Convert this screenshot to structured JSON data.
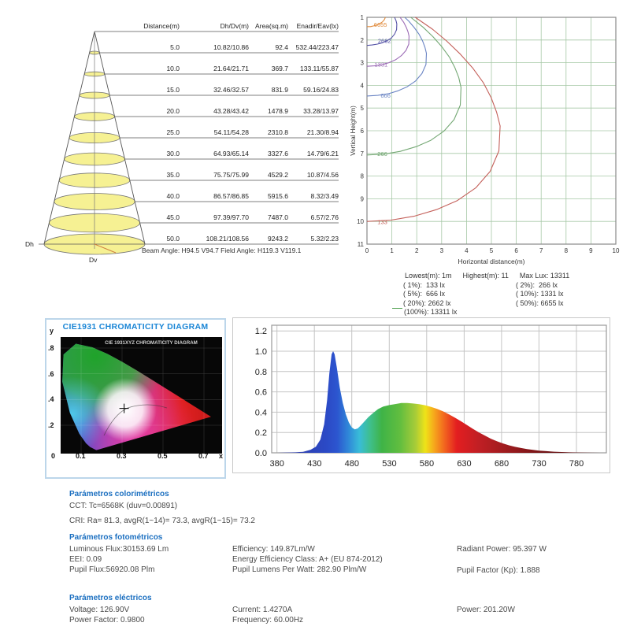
{
  "cone": {
    "dh_label": "Dh",
    "dv_label": "Dv",
    "beam_angle_text": "Beam Angle: H94.5 V94.7  Field Angle: H119.3 V119.1"
  },
  "colors": {
    "accent_blue": "#1B86D6",
    "param_blue": "#1B6FC0",
    "grid_green": "#A6C8A6",
    "cone_fill": "#F6F193",
    "legend_dash_green": "#4FA04F"
  },
  "chart_data": [
    {
      "type": "table",
      "headers": [
        "Distance(m)",
        "Dh/Dv(m)",
        "Area(sq.m)",
        "Enadir/Eav(lx)"
      ],
      "rows": [
        [
          "5.0",
          "10.82/10.86",
          "92.4",
          "532.44/223.47"
        ],
        [
          "10.0",
          "21.64/21.71",
          "369.7",
          "133.11/55.87"
        ],
        [
          "15.0",
          "32.46/32.57",
          "831.9",
          "59.16/24.83"
        ],
        [
          "20.0",
          "43.28/43.42",
          "1478.9",
          "33.28/13.97"
        ],
        [
          "25.0",
          "54.11/54.28",
          "2310.8",
          "21.30/8.94"
        ],
        [
          "30.0",
          "64.93/65.14",
          "3327.6",
          "14.79/6.21"
        ],
        [
          "35.0",
          "75.75/75.99",
          "4529.2",
          "10.87/4.56"
        ],
        [
          "40.0",
          "86.57/86.85",
          "5915.6",
          "8.32/3.49"
        ],
        [
          "45.0",
          "97.39/97.70",
          "7487.0",
          "6.57/2.76"
        ],
        [
          "50.0",
          "108.21/108.56",
          "9243.2",
          "5.32/2.23"
        ]
      ]
    },
    {
      "type": "line",
      "title": "isolux-contours",
      "xlabel": "Horizontal distance(m)",
      "ylabel": "Vertical Height(m)",
      "xlim": [
        0,
        10
      ],
      "ylim": [
        1,
        11
      ],
      "grid": true,
      "xticks": [
        "0",
        "1",
        "2",
        "3",
        "4",
        "5",
        "6",
        "7",
        "8",
        "9",
        "10"
      ],
      "yticks": [
        "1",
        "2",
        "3",
        "4",
        "5",
        "6",
        "7",
        "8",
        "9",
        "10",
        "11"
      ],
      "curves": [
        {
          "label": "6655",
          "color": "#E08A3C",
          "label_pos": [
            0.28,
            1.33
          ],
          "points": [
            [
              0,
              1.41
            ],
            [
              0.14,
              1.41
            ],
            [
              0.27,
              1.38
            ],
            [
              0.4,
              1.34
            ],
            [
              0.51,
              1.28
            ],
            [
              0.62,
              1.2
            ],
            [
              0.7,
              1.1
            ],
            [
              0.74,
              1.0
            ]
          ]
        },
        {
          "label": "2662",
          "color": "#5553A6",
          "label_pos": [
            0.44,
            2.05
          ],
          "points": [
            [
              0,
              2.24
            ],
            [
              0.21,
              2.22
            ],
            [
              0.42,
              2.18
            ],
            [
              0.62,
              2.12
            ],
            [
              0.81,
              2.03
            ],
            [
              0.98,
              1.91
            ],
            [
              1.11,
              1.74
            ],
            [
              1.19,
              1.54
            ],
            [
              1.2,
              1.29
            ],
            [
              1.17,
              1.16
            ],
            [
              1.11,
              1.0
            ]
          ]
        },
        {
          "label": "1331",
          "color": "#9B6BB5",
          "label_pos": [
            0.3,
            3.08
          ],
          "points": [
            [
              0,
              3.16
            ],
            [
              0.3,
              3.14
            ],
            [
              0.6,
              3.09
            ],
            [
              0.88,
              3.0
            ],
            [
              1.15,
              2.87
            ],
            [
              1.38,
              2.69
            ],
            [
              1.57,
              2.46
            ],
            [
              1.68,
              2.18
            ],
            [
              1.69,
              1.83
            ],
            [
              1.65,
              1.64
            ],
            [
              1.58,
              1.44
            ],
            [
              1.48,
              1.23
            ],
            [
              1.33,
              1.0
            ]
          ]
        },
        {
          "label": "666",
          "color": "#6B85C4",
          "label_pos": [
            0.55,
            4.46
          ],
          "points": [
            [
              0,
              4.47
            ],
            [
              0.43,
              4.44
            ],
            [
              0.85,
              4.37
            ],
            [
              1.25,
              4.24
            ],
            [
              1.62,
              4.06
            ],
            [
              1.95,
              3.81
            ],
            [
              2.21,
              3.48
            ],
            [
              2.37,
              3.08
            ],
            [
              2.39,
              2.59
            ],
            [
              2.33,
              2.32
            ],
            [
              2.23,
              2.03
            ],
            [
              2.09,
              1.74
            ],
            [
              1.9,
              1.45
            ],
            [
              1.68,
              1.17
            ],
            [
              1.52,
              1.0
            ]
          ]
        },
        {
          "label": "266",
          "color": "#74A874",
          "label_pos": [
            0.42,
            7.02
          ],
          "points": [
            [
              0,
              7.07
            ],
            [
              0.68,
              7.03
            ],
            [
              1.34,
              6.91
            ],
            [
              1.98,
              6.7
            ],
            [
              2.57,
              6.42
            ],
            [
              3.09,
              6.02
            ],
            [
              3.5,
              5.51
            ],
            [
              3.75,
              4.87
            ],
            [
              3.78,
              4.09
            ],
            [
              3.69,
              3.66
            ],
            [
              3.53,
              3.21
            ],
            [
              3.31,
              2.75
            ],
            [
              3.01,
              2.3
            ],
            [
              2.65,
              1.85
            ],
            [
              2.26,
              1.44
            ],
            [
              1.76,
              1.0
            ]
          ]
        },
        {
          "label": "133",
          "color": "#C4605A",
          "label_pos": [
            0.42,
            10.02
          ],
          "points": [
            [
              0,
              10.0
            ],
            [
              0.96,
              9.94
            ],
            [
              1.89,
              9.77
            ],
            [
              2.79,
              9.48
            ],
            [
              3.63,
              9.08
            ],
            [
              4.37,
              8.52
            ],
            [
              4.95,
              7.79
            ],
            [
              5.3,
              6.89
            ],
            [
              5.35,
              5.79
            ],
            [
              5.21,
              5.18
            ],
            [
              4.99,
              4.54
            ],
            [
              4.68,
              3.89
            ],
            [
              4.26,
              3.25
            ],
            [
              3.75,
              2.62
            ],
            [
              3.2,
              2.04
            ],
            [
              2.63,
              1.52
            ],
            [
              1.94,
              1.0
            ]
          ]
        }
      ],
      "legend": {
        "lowest": "Lowest(m): 1m",
        "highest": "Highest(m): 11",
        "maxlux": "Max Lux: 13311",
        "left": [
          "( 1%):  133 lx",
          "( 5%):  666 lx",
          "( 20%): 2662 lx",
          "(100%): 13311 lx"
        ],
        "right": [
          "( 2%):  266 lx",
          "( 10%): 1331 lx",
          "( 50%): 6655 lx"
        ]
      }
    },
    {
      "type": "area",
      "title": "spectral-power-distribution",
      "xlabel": "",
      "ylabel": "",
      "xlim": [
        373,
        820
      ],
      "ylim": [
        0,
        1.24
      ],
      "grid": true,
      "xticks": [
        "380",
        "430",
        "480",
        "530",
        "580",
        "630",
        "680",
        "730",
        "780"
      ],
      "yticks": [
        "0.0",
        "0.2",
        "0.4",
        "0.6",
        "0.8",
        "1.0",
        "1.2"
      ],
      "points": [
        [
          380,
          0
        ],
        [
          405,
          0.005
        ],
        [
          415,
          0.01
        ],
        [
          425,
          0.03
        ],
        [
          432,
          0.06
        ],
        [
          438,
          0.13
        ],
        [
          443,
          0.28
        ],
        [
          447,
          0.52
        ],
        [
          450,
          0.78
        ],
        [
          453,
          0.97
        ],
        [
          455,
          1.0
        ],
        [
          457,
          0.97
        ],
        [
          460,
          0.84
        ],
        [
          464,
          0.64
        ],
        [
          468,
          0.49
        ],
        [
          472,
          0.38
        ],
        [
          476,
          0.3
        ],
        [
          480,
          0.25
        ],
        [
          484,
          0.23
        ],
        [
          488,
          0.24
        ],
        [
          492,
          0.27
        ],
        [
          497,
          0.31
        ],
        [
          502,
          0.35
        ],
        [
          508,
          0.39
        ],
        [
          515,
          0.43
        ],
        [
          522,
          0.455
        ],
        [
          530,
          0.47
        ],
        [
          538,
          0.48
        ],
        [
          546,
          0.49
        ],
        [
          554,
          0.49
        ],
        [
          562,
          0.485
        ],
        [
          570,
          0.478
        ],
        [
          578,
          0.468
        ],
        [
          586,
          0.452
        ],
        [
          594,
          0.432
        ],
        [
          602,
          0.408
        ],
        [
          610,
          0.378
        ],
        [
          618,
          0.345
        ],
        [
          626,
          0.31
        ],
        [
          634,
          0.272
        ],
        [
          642,
          0.235
        ],
        [
          650,
          0.2
        ],
        [
          658,
          0.168
        ],
        [
          666,
          0.138
        ],
        [
          674,
          0.113
        ],
        [
          682,
          0.092
        ],
        [
          690,
          0.074
        ],
        [
          698,
          0.059
        ],
        [
          706,
          0.047
        ],
        [
          714,
          0.037
        ],
        [
          722,
          0.029
        ],
        [
          730,
          0.022
        ],
        [
          740,
          0.016
        ],
        [
          750,
          0.011
        ],
        [
          760,
          0.008
        ],
        [
          770,
          0.005
        ],
        [
          780,
          0.003
        ],
        [
          800,
          0.001
        ],
        [
          818,
          0
        ]
      ]
    },
    {
      "type": "scatter",
      "title": "CIE1931 CHROMATICITY DIAGRAM",
      "inner_title": "CIE 1931XYZ CHROMATICITY DIAGRAM",
      "xlabel": "x",
      "ylabel": "y",
      "xticks": [
        "0",
        "0.1",
        "0.3",
        "0.5",
        "0.7"
      ],
      "yticks": [
        ".8",
        ".6",
        ".4",
        ".2"
      ],
      "point": [
        0.31,
        0.33
      ]
    }
  ],
  "params": {
    "colorimetric": {
      "title": "Parámetros colorimétricos",
      "lines": [
        "CCT: Tc=6568K (duv=0.00891)",
        "CRI: Ra= 81.3, avgR(1~14)= 73.3, avgR(1~15)= 73.2"
      ]
    },
    "photometric": {
      "title": "Parámetros fotométricos",
      "col1": [
        "Luminous Flux:30153.69 Lm",
        "EEI: 0.09",
        "Pupil Flux:56920.08 Plm"
      ],
      "col2": [
        "Efficiency: 149.87Lm/W",
        "Energy Efficiency Class: A+ (EU 874-2012)",
        "Pupil Lumens Per Watt: 282.90 Plm/W"
      ],
      "col3": [
        "Radiant Power: 95.397 W",
        "Pupil Factor (Kp): 1.888"
      ]
    },
    "electrical": {
      "title": "Parámetros eléctricos",
      "col1": [
        "Voltage: 126.90V",
        "Power Factor: 0.9800"
      ],
      "col2": [
        "Current: 1.4270A",
        "Frequency: 60.00Hz"
      ],
      "col3": [
        "Power: 201.20W"
      ]
    }
  }
}
